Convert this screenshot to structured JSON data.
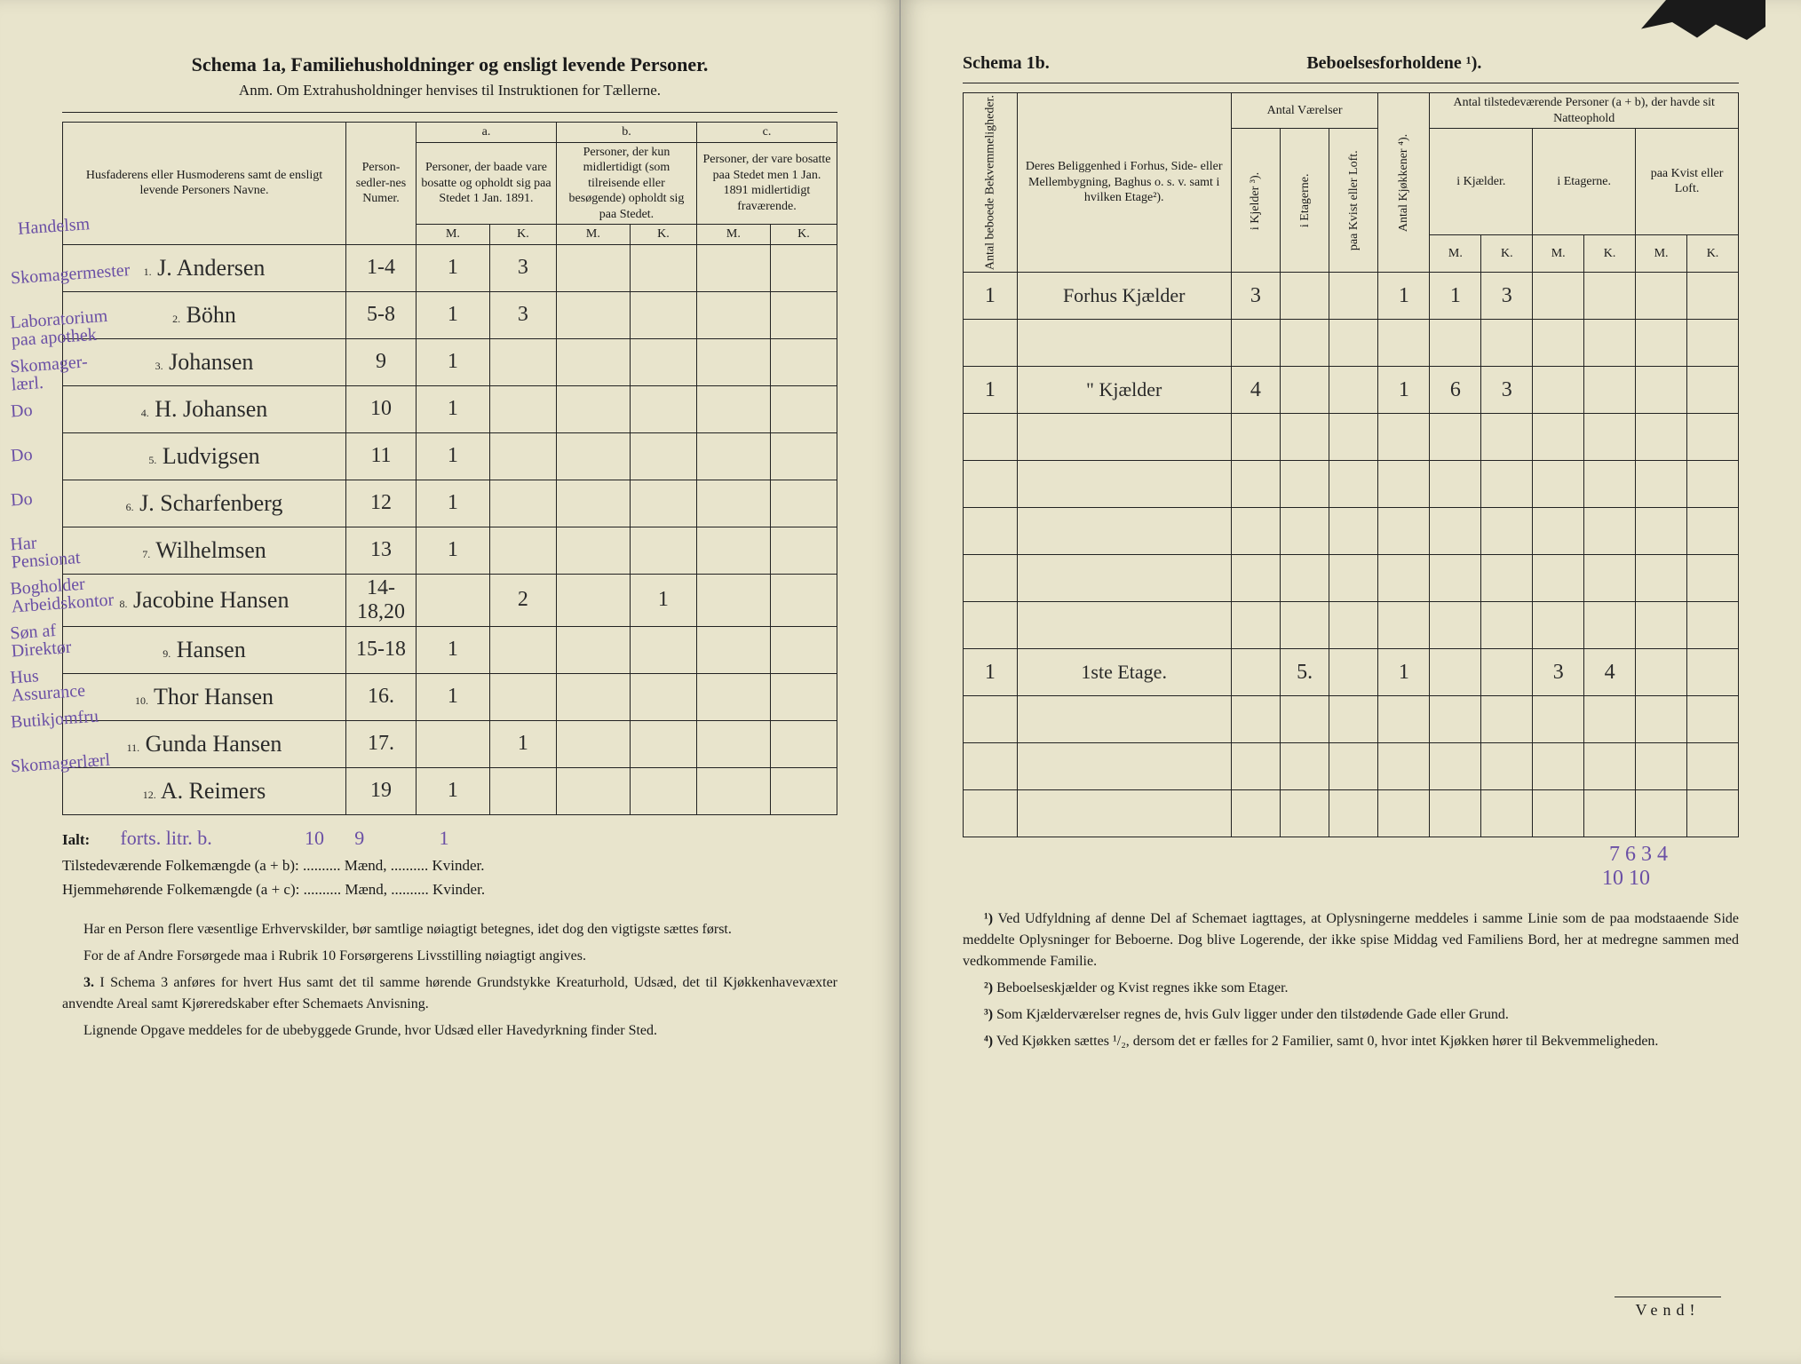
{
  "left": {
    "title": "Schema 1a,   Familiehusholdninger og ensligt levende Personer.",
    "subtitle": "Anm. Om Extrahusholdninger henvises til Instruktionen for Tællerne.",
    "col_name": "Husfaderens eller Husmoderens samt de ensligt levende Personers Navne.",
    "col_sedler": "Person-sedler-nes Numer.",
    "col_a_top": "a.",
    "col_a": "Personer, der baade vare bosatte og opholdt sig paa Stedet 1 Jan. 1891.",
    "col_b_top": "b.",
    "col_b": "Personer, der kun midlertidigt (som tilreisende eller besøgende) opholdt sig paa Stedet.",
    "col_c_top": "c.",
    "col_c": "Personer, der vare bosatte paa Stedet men 1 Jan. 1891 midlertidigt fraværende.",
    "mk_m": "M.",
    "mk_k": "K.",
    "margin_head": "Handelsm",
    "margin_notes": [
      "Skomagermester",
      "Laboratorium paa apothek",
      "Skomager-lærl.",
      "Do",
      "Do",
      "Do",
      "Har Pensionat",
      "Bogholder Arbeidskontor",
      "Søn af Direktør",
      "Hus Assurance",
      "Butikjomfru",
      "Skomagerlærl"
    ],
    "rows": [
      {
        "n": "1.",
        "name": "J. Andersen",
        "sed": "1-4",
        "am": "1",
        "ak": "3",
        "bm": "",
        "bk": "",
        "cm": "",
        "ck": ""
      },
      {
        "n": "2.",
        "name": "Böhn",
        "sed": "5-8",
        "am": "1",
        "ak": "3",
        "bm": "",
        "bk": "",
        "cm": "",
        "ck": ""
      },
      {
        "n": "3.",
        "name": "Johansen",
        "sed": "9",
        "am": "1",
        "ak": "",
        "bm": "",
        "bk": "",
        "cm": "",
        "ck": ""
      },
      {
        "n": "4.",
        "name": "H. Johansen",
        "sed": "10",
        "am": "1",
        "ak": "",
        "bm": "",
        "bk": "",
        "cm": "",
        "ck": ""
      },
      {
        "n": "5.",
        "name": "Ludvigsen",
        "sed": "11",
        "am": "1",
        "ak": "",
        "bm": "",
        "bk": "",
        "cm": "",
        "ck": ""
      },
      {
        "n": "6.",
        "name": "J. Scharfenberg",
        "sed": "12",
        "am": "1",
        "ak": "",
        "bm": "",
        "bk": "",
        "cm": "",
        "ck": ""
      },
      {
        "n": "7.",
        "name": "Wilhelmsen",
        "sed": "13",
        "am": "1",
        "ak": "",
        "bm": "",
        "bk": "",
        "cm": "",
        "ck": ""
      },
      {
        "n": "8.",
        "name": "Jacobine Hansen",
        "sed": "14-18,20",
        "am": "",
        "ak": "2",
        "bm": "",
        "bk": "1",
        "cm": "",
        "ck": ""
      },
      {
        "n": "9.",
        "name": "Hansen",
        "sed": "15-18",
        "am": "1",
        "ak": "",
        "bm": "",
        "bk": "",
        "cm": "",
        "ck": ""
      },
      {
        "n": "10.",
        "name": "Thor Hansen",
        "sed": "16.",
        "am": "1",
        "ak": "",
        "bm": "",
        "bk": "",
        "cm": "",
        "ck": ""
      },
      {
        "n": "11.",
        "name": "Gunda Hansen",
        "sed": "17.",
        "am": "",
        "ak": "1",
        "bm": "",
        "bk": "",
        "cm": "",
        "ck": ""
      },
      {
        "n": "12.",
        "name": "A. Reimers",
        "sed": "19",
        "am": "1",
        "ak": "",
        "bm": "",
        "bk": "",
        "cm": "",
        "ck": ""
      }
    ],
    "ialt_label": "Ialt:",
    "ialt_note": "forts. litr. b.",
    "ialt_am": "10",
    "ialt_ak": "9",
    "ialt_bm": "",
    "ialt_bk": "1",
    "tilstede": "Tilstedeværende Folkemængde (a + b): .......... Mænd, .......... Kvinder.",
    "hjemme": "Hjemmehørende Folkemængde (a + c): .......... Mænd, .......... Kvinder.",
    "foot1": "Har en Person flere væsentlige Erhvervskilder, bør samtlige nøiagtigt betegnes, idet dog den vigtigste sættes først.",
    "foot2": "For de af Andre Forsørgede maa i Rubrik 10 Forsørgerens Livsstilling nøiagtigt angives.",
    "foot3_label": "3.",
    "foot3": "I Schema 3 anføres for hvert Hus samt det til samme hørende Grundstykke Kreaturhold, Udsæd, det til Kjøkkenhavevæxter anvendte Areal samt Kjøreredskaber efter Schemaets Anvisning.",
    "foot4": "Lignende Opgave meddeles for de ubebyggede Grunde, hvor Udsæd eller Havedyrkning finder Sted."
  },
  "right": {
    "schema": "Schema 1b.",
    "title": "Beboelsesforholdene ¹).",
    "col_bebo": "Antal beboede Bekvemmeligheder.",
    "col_belig": "Deres Beliggenhed i Forhus, Side- eller Mellembygning, Baghus o. s. v. samt i hvilken Etage²).",
    "col_vaer": "Antal Værelser",
    "col_kj": "i Kjelder ³).",
    "col_et": "i Etagerne.",
    "col_kvist": "paa Kvist eller Loft.",
    "col_kjok": "Antal Kjøkkener ⁴).",
    "col_pers": "Antal tilstedeværende Personer (a + b), der havde sit Natteophold",
    "col_p_kj": "i Kjælder.",
    "col_p_et": "i Etagerne.",
    "col_p_kv": "paa Kvist eller Loft.",
    "mk_m": "M.",
    "mk_k": "K.",
    "rows": [
      {
        "antal": "1",
        "belig": "Forhus Kjælder",
        "kj": "3",
        "et": "",
        "kv": "",
        "kjok": "1",
        "pkjm": "1",
        "pkjk": "3",
        "petm": "",
        "petk": "",
        "pkvm": "",
        "pkvk": ""
      },
      {
        "antal": "",
        "belig": "",
        "kj": "",
        "et": "",
        "kv": "",
        "kjok": "",
        "pkjm": "",
        "pkjk": "",
        "petm": "",
        "petk": "",
        "pkvm": "",
        "pkvk": ""
      },
      {
        "antal": "1",
        "belig": "\"  Kjælder",
        "kj": "4",
        "et": "",
        "kv": "",
        "kjok": "1",
        "pkjm": "6",
        "pkjk": "3",
        "petm": "",
        "petk": "",
        "pkvm": "",
        "pkvk": ""
      },
      {
        "antal": "",
        "belig": "",
        "kj": "",
        "et": "",
        "kv": "",
        "kjok": "",
        "pkjm": "",
        "pkjk": "",
        "petm": "",
        "petk": "",
        "pkvm": "",
        "pkvk": ""
      },
      {
        "antal": "",
        "belig": "",
        "kj": "",
        "et": "",
        "kv": "",
        "kjok": "",
        "pkjm": "",
        "pkjk": "",
        "petm": "",
        "petk": "",
        "pkvm": "",
        "pkvk": ""
      },
      {
        "antal": "",
        "belig": "",
        "kj": "",
        "et": "",
        "kv": "",
        "kjok": "",
        "pkjm": "",
        "pkjk": "",
        "petm": "",
        "petk": "",
        "pkvm": "",
        "pkvk": ""
      },
      {
        "antal": "",
        "belig": "",
        "kj": "",
        "et": "",
        "kv": "",
        "kjok": "",
        "pkjm": "",
        "pkjk": "",
        "petm": "",
        "petk": "",
        "pkvm": "",
        "pkvk": ""
      },
      {
        "antal": "",
        "belig": "",
        "kj": "",
        "et": "",
        "kv": "",
        "kjok": "",
        "pkjm": "",
        "pkjk": "",
        "petm": "",
        "petk": "",
        "pkvm": "",
        "pkvk": ""
      },
      {
        "antal": "1",
        "belig": "1ste Etage.",
        "kj": "",
        "et": "5.",
        "kv": "",
        "kjok": "1",
        "pkjm": "",
        "pkjk": "",
        "petm": "3",
        "petk": "4",
        "pkvm": "",
        "pkvk": ""
      },
      {
        "antal": "",
        "belig": "",
        "kj": "",
        "et": "",
        "kv": "",
        "kjok": "",
        "pkjm": "",
        "pkjk": "",
        "petm": "",
        "petk": "",
        "pkvm": "",
        "pkvk": ""
      },
      {
        "antal": "",
        "belig": "",
        "kj": "",
        "et": "",
        "kv": "",
        "kjok": "",
        "pkjm": "",
        "pkjk": "",
        "petm": "",
        "petk": "",
        "pkvm": "",
        "pkvk": ""
      },
      {
        "antal": "",
        "belig": "",
        "kj": "",
        "et": "",
        "kv": "",
        "kjok": "",
        "pkjm": "",
        "pkjk": "",
        "petm": "",
        "petk": "",
        "pkvm": "",
        "pkvk": ""
      }
    ],
    "sum1": "7   6   3   4",
    "sum2": "10        10",
    "fn1_label": "¹)",
    "fn1": "Ved Udfyldning af denne Del af Schemaet iagttages, at Oplysningerne meddeles i samme Linie som de paa modstaaende Side meddelte Oplysninger for Beboerne. Dog blive Logerende, der ikke spise Middag ved Familiens Bord, her at medregne sammen med vedkommende Familie.",
    "fn2_label": "²)",
    "fn2": "Beboelseskjælder og Kvist regnes ikke som Etager.",
    "fn3_label": "³)",
    "fn3": "Som Kjælderværelser regnes de, hvis Gulv ligger under den tilstødende Gade eller Grund.",
    "fn4_label": "⁴)",
    "fn4": "Ved Kjøkken sættes ¹/₂, dersom det er fælles for 2 Familier, samt 0, hvor intet Kjøkken hører til Bekvemmeligheden.",
    "vend": "Vend!"
  },
  "colors": {
    "paper": "#e8e4cc",
    "ink": "#1a1a1a",
    "handwriting": "#2a2a2a",
    "purple": "#6a4fa5"
  }
}
